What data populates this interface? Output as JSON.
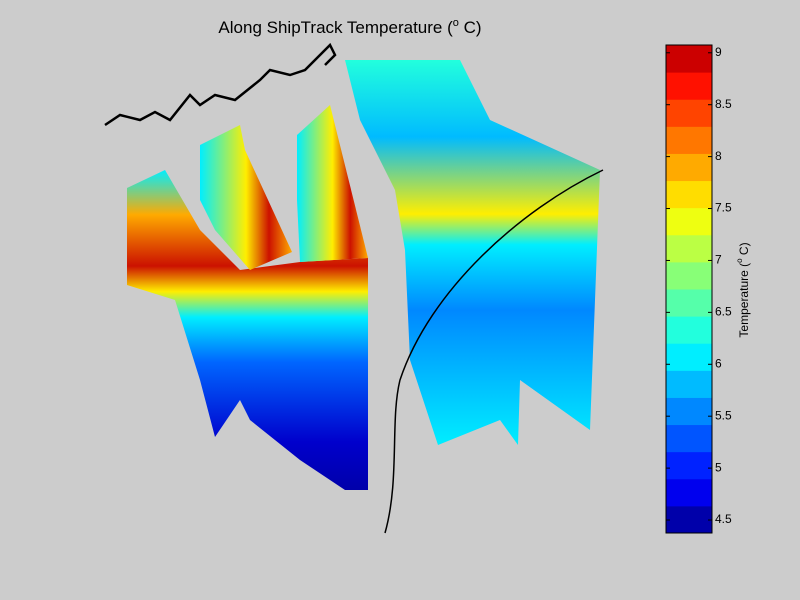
{
  "chart_data": {
    "type": "slice3d",
    "title": "Along ShipTrack Temperature (",
    "title_sup": "o",
    "title_end": " C)",
    "colorbar": {
      "label": "Temperature (",
      "label_sup": "o",
      "label_end": " C)",
      "lim": [
        4.375,
        9.075
      ],
      "ticks": [
        4.5,
        5,
        5.5,
        6,
        6.5,
        7,
        7.5,
        8,
        8.5,
        9
      ],
      "colors": [
        "#0000aa",
        "#0000ee",
        "#0022ff",
        "#0055ff",
        "#0088ff",
        "#00bbff",
        "#00eeff",
        "#22ffdd",
        "#55ffaa",
        "#88ff77",
        "#bbff44",
        "#eeff11",
        "#ffdd00",
        "#ffaa00",
        "#ff7700",
        "#ff4400",
        "#ff1100",
        "#cc0000"
      ]
    }
  }
}
